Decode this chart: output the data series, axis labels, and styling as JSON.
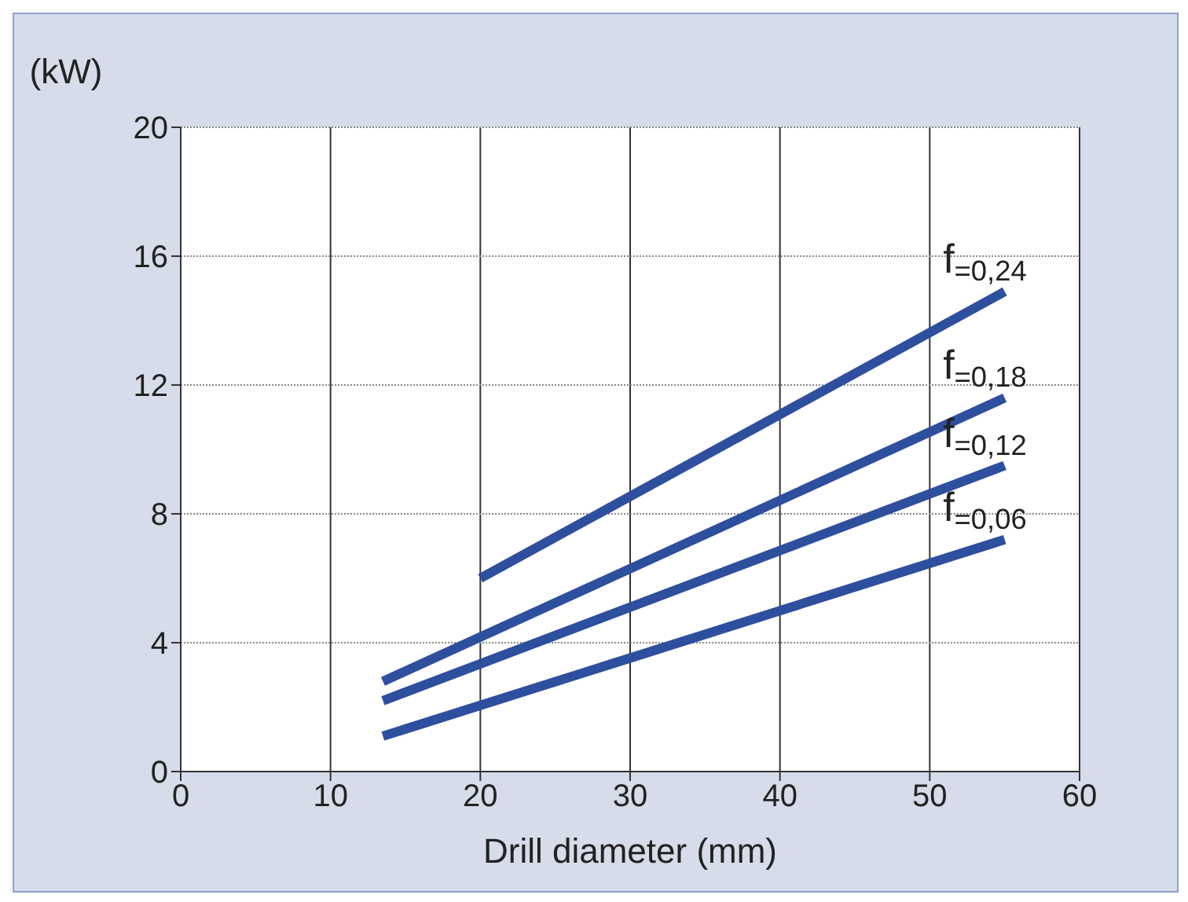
{
  "chart_data": {
    "type": "line",
    "xlabel": "Drill diameter (mm)",
    "ylabel": "(kW)",
    "xlim": [
      0,
      60
    ],
    "xticks": [
      0,
      10,
      20,
      30,
      40,
      50,
      60
    ],
    "ylim": [
      0,
      20
    ],
    "yticks": [
      0,
      4,
      8,
      12,
      16,
      20
    ],
    "grid": true,
    "marker": "none",
    "line_style": "solid",
    "series": [
      {
        "name": "f$_{=0,24}$",
        "color": "#2e4f9e",
        "x": [
          20,
          55
        ],
        "values": [
          6,
          14.9
        ]
      },
      {
        "name": "f$_{=0,18}$",
        "color": "#2e4f9e",
        "x": [
          13.5,
          55
        ],
        "values": [
          2.8,
          11.6
        ]
      },
      {
        "name": "f$_{=0,12}$",
        "color": "#2e4f9e",
        "x": [
          13.5,
          55
        ],
        "values": [
          2.2,
          9.5
        ]
      },
      {
        "name": "f$_{=0,06}$",
        "color": "#2e4f9e",
        "x": [
          13.5,
          55
        ],
        "values": [
          1.1,
          7.2
        ]
      }
    ]
  }
}
